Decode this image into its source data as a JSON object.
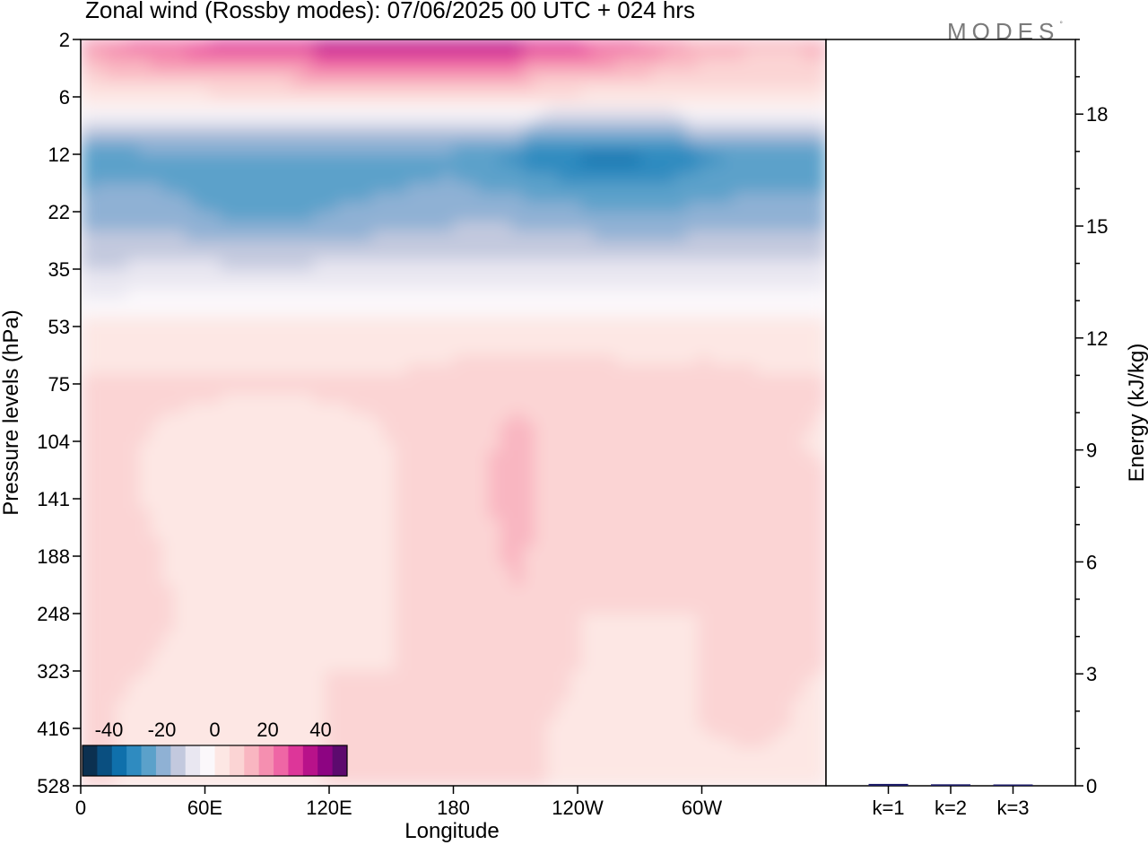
{
  "title": "Zonal wind (Rossby modes):  07/06/2025  00 UTC  + 024 hrs",
  "brand": {
    "text": "MODES",
    "mark": "°"
  },
  "chart_data": [
    {
      "type": "heatmap",
      "variable": "Zonal wind (Rossby modes)",
      "xlabel": "Longitude",
      "ylabel": "Pressure levels (hPa)",
      "x_ticks": [
        {
          "lon": 0,
          "label": "0"
        },
        {
          "lon": 60,
          "label": "60E"
        },
        {
          "lon": 120,
          "label": "120E"
        },
        {
          "lon": 180,
          "label": "180"
        },
        {
          "lon": 240,
          "label": "120W"
        },
        {
          "lon": 300,
          "label": "60W"
        }
      ],
      "xlim": [
        0,
        360
      ],
      "y_levels": [
        "2",
        "6",
        "12",
        "22",
        "35",
        "53",
        "75",
        "104",
        "141",
        "188",
        "248",
        "323",
        "416",
        "528"
      ],
      "y_scale": "index (pressure levels, top = 2 hPa)",
      "colorbar": {
        "ticks": [
          "-40",
          "-20",
          "0",
          "20",
          "40"
        ],
        "range": [
          -50,
          50
        ],
        "step": 5,
        "colors": [
          "#0b3050",
          "#0a4f80",
          "#0f70ab",
          "#2f8bc0",
          "#5ba1ca",
          "#8fb1d4",
          "#c3c9de",
          "#e9e7f1",
          "#fbf8fb",
          "#fde7e4",
          "#fbd4d4",
          "#f9b6c1",
          "#f58fb0",
          "#ef66a5",
          "#dd3699",
          "#b8128a",
          "#8d0482",
          "#5d0a6e"
        ],
        "placement": "bottom-left"
      },
      "z_grid": {
        "columns_lon": [
          0,
          30,
          60,
          90,
          120,
          150,
          180,
          210,
          240,
          270,
          300,
          330,
          360
        ],
        "rows": [
          [
            12,
            18,
            22,
            25,
            28,
            30,
            30,
            28,
            22,
            16,
            10,
            6,
            8
          ],
          [
            -2,
            -2,
            -2,
            -2,
            -2,
            -2,
            -2,
            -2,
            -2,
            -2,
            -2,
            -2,
            -2
          ],
          [
            -28,
            -27,
            -27,
            -27,
            -27,
            -27,
            -27,
            -32,
            -36,
            -36,
            -32,
            -28,
            -28
          ],
          [
            -23,
            -23,
            -25,
            -28,
            -25,
            -24,
            -22,
            -22,
            -24,
            -25,
            -24,
            -23,
            -24
          ],
          [
            -15,
            -14,
            -14,
            -14,
            -14,
            -14,
            -14,
            -14,
            -14,
            -14,
            -14,
            -14,
            -14
          ],
          [
            -4,
            -4,
            -3,
            -4,
            -4,
            -4,
            -4,
            -4,
            -4,
            -4,
            -4,
            -4,
            -4
          ],
          [
            1,
            1,
            1,
            0.5,
            1,
            1,
            3,
            4,
            4,
            2,
            3,
            1,
            1
          ],
          [
            1,
            0,
            -2,
            -4,
            -2,
            0,
            3,
            6,
            3,
            0,
            4,
            2,
            -1
          ],
          [
            3,
            0,
            -3,
            -5,
            -2,
            0,
            2,
            7,
            2,
            0,
            3,
            2,
            1
          ],
          [
            4,
            1,
            -2,
            -3,
            -1,
            0,
            1,
            6,
            1,
            0,
            2,
            3,
            1
          ],
          [
            3,
            1,
            -1,
            -2,
            -1,
            0,
            1,
            4,
            0,
            0,
            0,
            1,
            1
          ],
          [
            1,
            0,
            -1,
            -1,
            0,
            0,
            1,
            2,
            0,
            -1,
            0,
            1,
            0
          ],
          [
            1,
            -1,
            -1,
            -1,
            0,
            0,
            1,
            1,
            -1,
            0,
            0,
            1,
            -2
          ],
          [
            1,
            -1,
            -1,
            -1,
            0,
            0,
            1,
            1,
            -1,
            0,
            -1,
            -2,
            -3
          ]
        ]
      }
    },
    {
      "type": "bar",
      "ylabel": "Energy (kJ/kg)",
      "ylim": [
        0,
        20
      ],
      "y_ticks": [
        "0",
        "3",
        "6",
        "9",
        "12",
        "15",
        "18"
      ],
      "categories": [
        "k=1",
        "k=2",
        "k=3"
      ],
      "values": [
        0.05,
        0.04,
        0.03
      ]
    }
  ]
}
